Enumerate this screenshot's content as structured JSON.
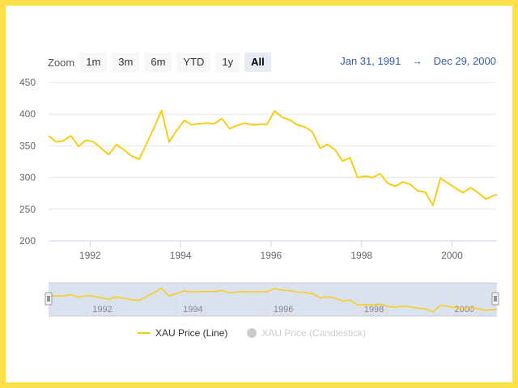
{
  "toolbar": {
    "zoom_label": "Zoom",
    "buttons": [
      "1m",
      "3m",
      "6m",
      "YTD",
      "1y",
      "All"
    ],
    "active": "All"
  },
  "range": {
    "from": "Jan 31, 1991",
    "sep": "→",
    "to": "Dec 29, 2000"
  },
  "legend": {
    "line_label": "XAU Price (Line)",
    "candle_label": "XAU Price (Candlestick)"
  },
  "colors": {
    "line": "#facc15",
    "frame": "#fde047",
    "navigator_mask": "#d4dcec",
    "range_text": "#335cad"
  },
  "chart_data": {
    "type": "line",
    "title": "",
    "xlabel": "",
    "ylabel": "",
    "x_ticks": [
      "1992",
      "1994",
      "1996",
      "1998",
      "2000"
    ],
    "y_ticks": [
      200,
      250,
      300,
      350,
      400,
      450
    ],
    "ylim": [
      200,
      450
    ],
    "xlim": [
      "1991-01-31",
      "2000-12-29"
    ],
    "grid": "horizontal",
    "legend_position": "bottom",
    "series": [
      {
        "name": "XAU Price (Line)",
        "x": [
          "1991-01-31",
          "1991-03-31",
          "1991-05-31",
          "1991-07-31",
          "1991-09-30",
          "1991-11-30",
          "1992-01-31",
          "1992-03-31",
          "1992-05-31",
          "1992-07-31",
          "1992-09-30",
          "1992-11-30",
          "1993-01-31",
          "1993-03-31",
          "1993-05-31",
          "1993-07-31",
          "1993-09-30",
          "1993-11-30",
          "1994-01-31",
          "1994-03-31",
          "1994-05-31",
          "1994-07-31",
          "1994-09-30",
          "1994-11-30",
          "1995-01-31",
          "1995-03-31",
          "1995-05-31",
          "1995-07-31",
          "1995-09-30",
          "1995-11-30",
          "1996-01-31",
          "1996-03-31",
          "1996-05-31",
          "1996-07-31",
          "1996-09-30",
          "1996-11-30",
          "1997-01-31",
          "1997-03-31",
          "1997-05-31",
          "1997-07-31",
          "1997-09-30",
          "1997-11-30",
          "1998-01-31",
          "1998-03-31",
          "1998-05-31",
          "1998-07-31",
          "1998-09-30",
          "1998-11-30",
          "1999-01-31",
          "1999-03-31",
          "1999-05-31",
          "1999-07-31",
          "1999-09-30",
          "1999-11-30",
          "2000-01-31",
          "2000-03-31",
          "2000-05-31",
          "2000-07-31",
          "2000-09-30",
          "2000-11-30",
          "2000-12-29"
        ],
        "values": [
          366,
          356,
          358,
          366,
          349,
          359,
          356,
          346,
          336,
          352,
          344,
          334,
          329,
          353,
          378,
          406,
          356,
          374,
          390,
          383,
          385,
          386,
          385,
          393,
          377,
          382,
          386,
          383,
          384,
          384,
          405,
          395,
          391,
          383,
          380,
          372,
          346,
          352,
          344,
          326,
          331,
          300,
          302,
          300,
          306,
          291,
          286,
          293,
          289,
          279,
          277,
          256,
          299,
          291,
          283,
          276,
          284,
          276,
          266,
          271,
          273
        ]
      }
    ]
  }
}
